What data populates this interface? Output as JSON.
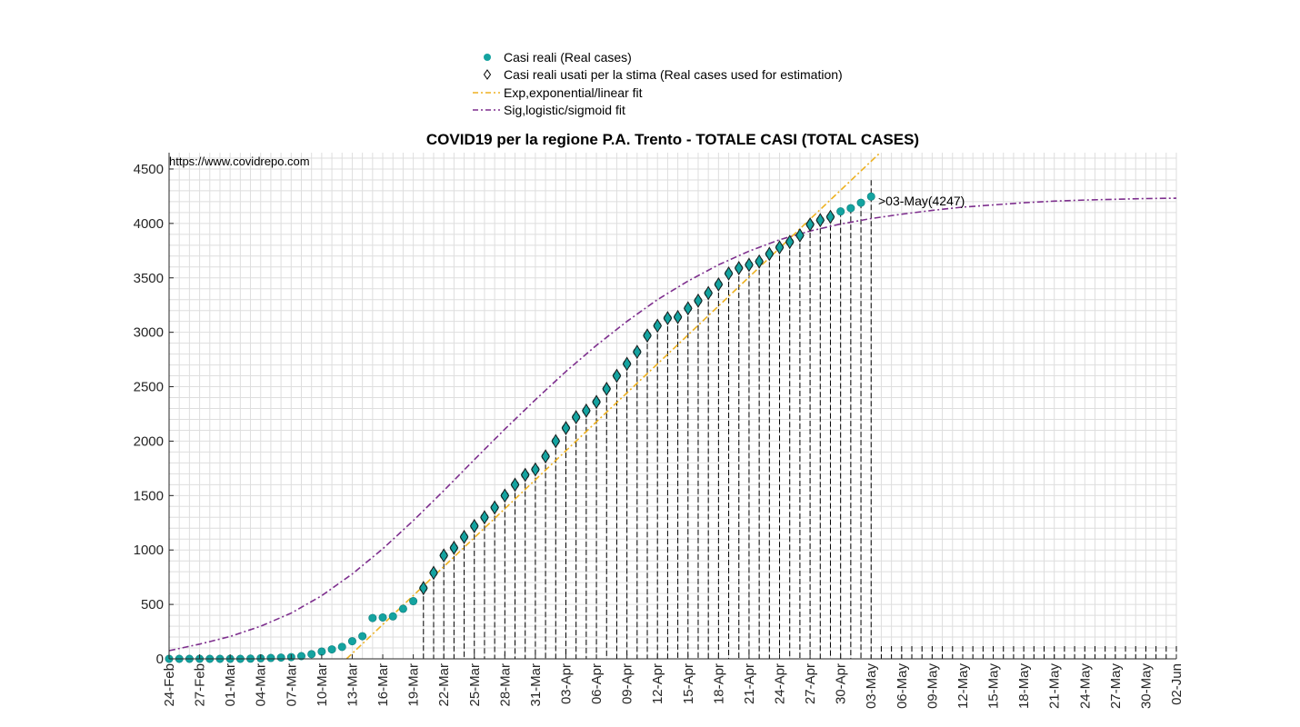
{
  "chart_data": {
    "type": "scatter",
    "title": "COVID19 per la regione P.A. Trento - TOTALE CASI (TOTAL CASES)",
    "watermark": "https://www.covidrepo.com",
    "annotation": ">03-May(4247)",
    "xlabel": "",
    "ylabel": "",
    "start_date": "24-Feb",
    "x_tick_labels": [
      "24-Feb",
      "27-Feb",
      "01-Mar",
      "04-Mar",
      "07-Mar",
      "10-Mar",
      "13-Mar",
      "16-Mar",
      "19-Mar",
      "22-Mar",
      "25-Mar",
      "28-Mar",
      "31-Mar",
      "03-Apr",
      "06-Apr",
      "09-Apr",
      "12-Apr",
      "15-Apr",
      "18-Apr",
      "21-Apr",
      "24-Apr",
      "27-Apr",
      "30-Apr",
      "03-May",
      "06-May",
      "09-May",
      "12-May",
      "15-May",
      "18-May",
      "21-May",
      "24-May",
      "27-May",
      "30-May",
      "02-Jun"
    ],
    "ylim": [
      0,
      4650
    ],
    "y_ticks": [
      0,
      500,
      1000,
      1500,
      2000,
      2500,
      3000,
      3500,
      4000,
      4500
    ],
    "grid": true,
    "legend_position": "top-center",
    "legend": [
      {
        "label": "Casi reali (Real cases)",
        "kind": "dot",
        "color": "#14a3a0"
      },
      {
        "label": "Casi reali usati per la stima (Real cases used for estimation)",
        "kind": "diamond",
        "color": "#000000"
      },
      {
        "label": "Exp,exponential/linear fit",
        "kind": "dashdot",
        "color": "#edb120"
      },
      {
        "label": "Sig,logistic/sigmoid fit",
        "kind": "dashdot",
        "color": "#7e2f8e"
      }
    ],
    "series": [
      {
        "name": "Casi reali (Real cases)",
        "values": [
          0,
          0,
          0,
          0,
          0,
          0,
          0,
          0,
          2,
          5,
          8,
          12,
          16,
          25,
          43,
          67,
          87,
          110,
          162,
          208,
          375,
          380,
          390,
          460,
          530,
          650,
          790,
          950,
          1020,
          1120,
          1220,
          1300,
          1390,
          1500,
          1600,
          1690,
          1740,
          1860,
          2000,
          2120,
          2220,
          2280,
          2360,
          2480,
          2600,
          2710,
          2820,
          2970,
          3060,
          3130,
          3140,
          3220,
          3290,
          3360,
          3440,
          3540,
          3590,
          3620,
          3650,
          3720,
          3780,
          3830,
          3890,
          3990,
          4030,
          4060,
          4110,
          4140,
          4190,
          4247
        ],
        "color": "#14a3a0"
      },
      {
        "name": "Casi reali usati per la stima (Real cases used for estimation)",
        "start_index": 25,
        "end_index": 65
      },
      {
        "name": "Exp,exponential/linear fit",
        "color": "#edb120"
      },
      {
        "name": "Sig,logistic/sigmoid fit",
        "color": "#7e2f8e",
        "values_at_ticks": [
          75,
          135,
          205,
          300,
          420,
          580,
          780,
          1010,
          1270,
          1545,
          1830,
          2110,
          2380,
          2640,
          2880,
          3100,
          3300,
          3470,
          3620,
          3745,
          3850,
          3930,
          3995,
          4045,
          4085,
          4120,
          4150,
          4170,
          4190,
          4205,
          4215,
          4222,
          4228,
          4232
        ]
      }
    ],
    "colors": {
      "real": "#14a3a0",
      "estimation_edge": "#000000",
      "exp_fit": "#edb120",
      "sig_fit": "#7e2f8e"
    }
  }
}
